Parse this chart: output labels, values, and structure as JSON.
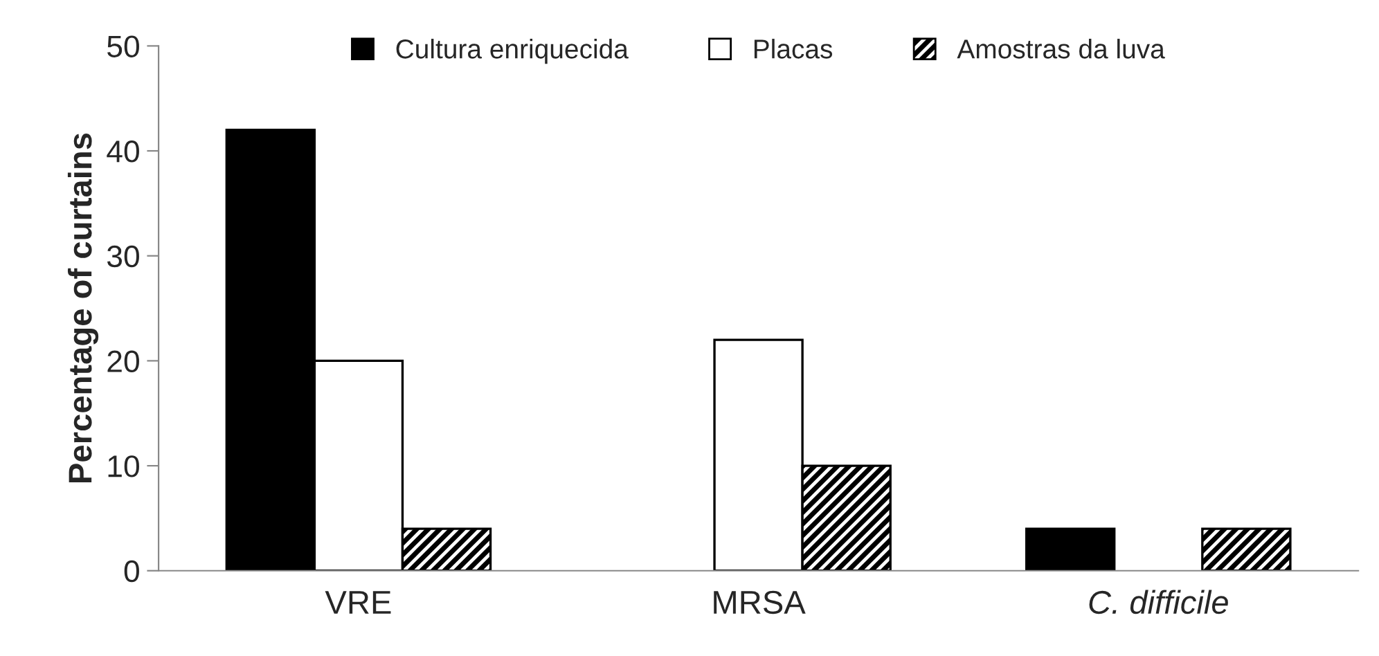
{
  "chart_data": {
    "type": "bar",
    "ylabel": "Percentage of curtains",
    "categories": [
      "VRE",
      "MRSA",
      "C. difficile"
    ],
    "series": [
      {
        "name": "Cultura enriquecida",
        "color": "#000000",
        "values": [
          42,
          0,
          4
        ]
      },
      {
        "name": "Placas",
        "color": "#ffffff",
        "values": [
          20,
          22,
          0
        ]
      },
      {
        "name": "Amostras da luva",
        "color": "#000000",
        "values": [
          4,
          10,
          4
        ]
      }
    ],
    "ylim": [
      0,
      50
    ],
    "yticks": [
      0,
      10,
      20,
      30,
      40,
      50
    ],
    "grid": false,
    "legend": "top"
  }
}
